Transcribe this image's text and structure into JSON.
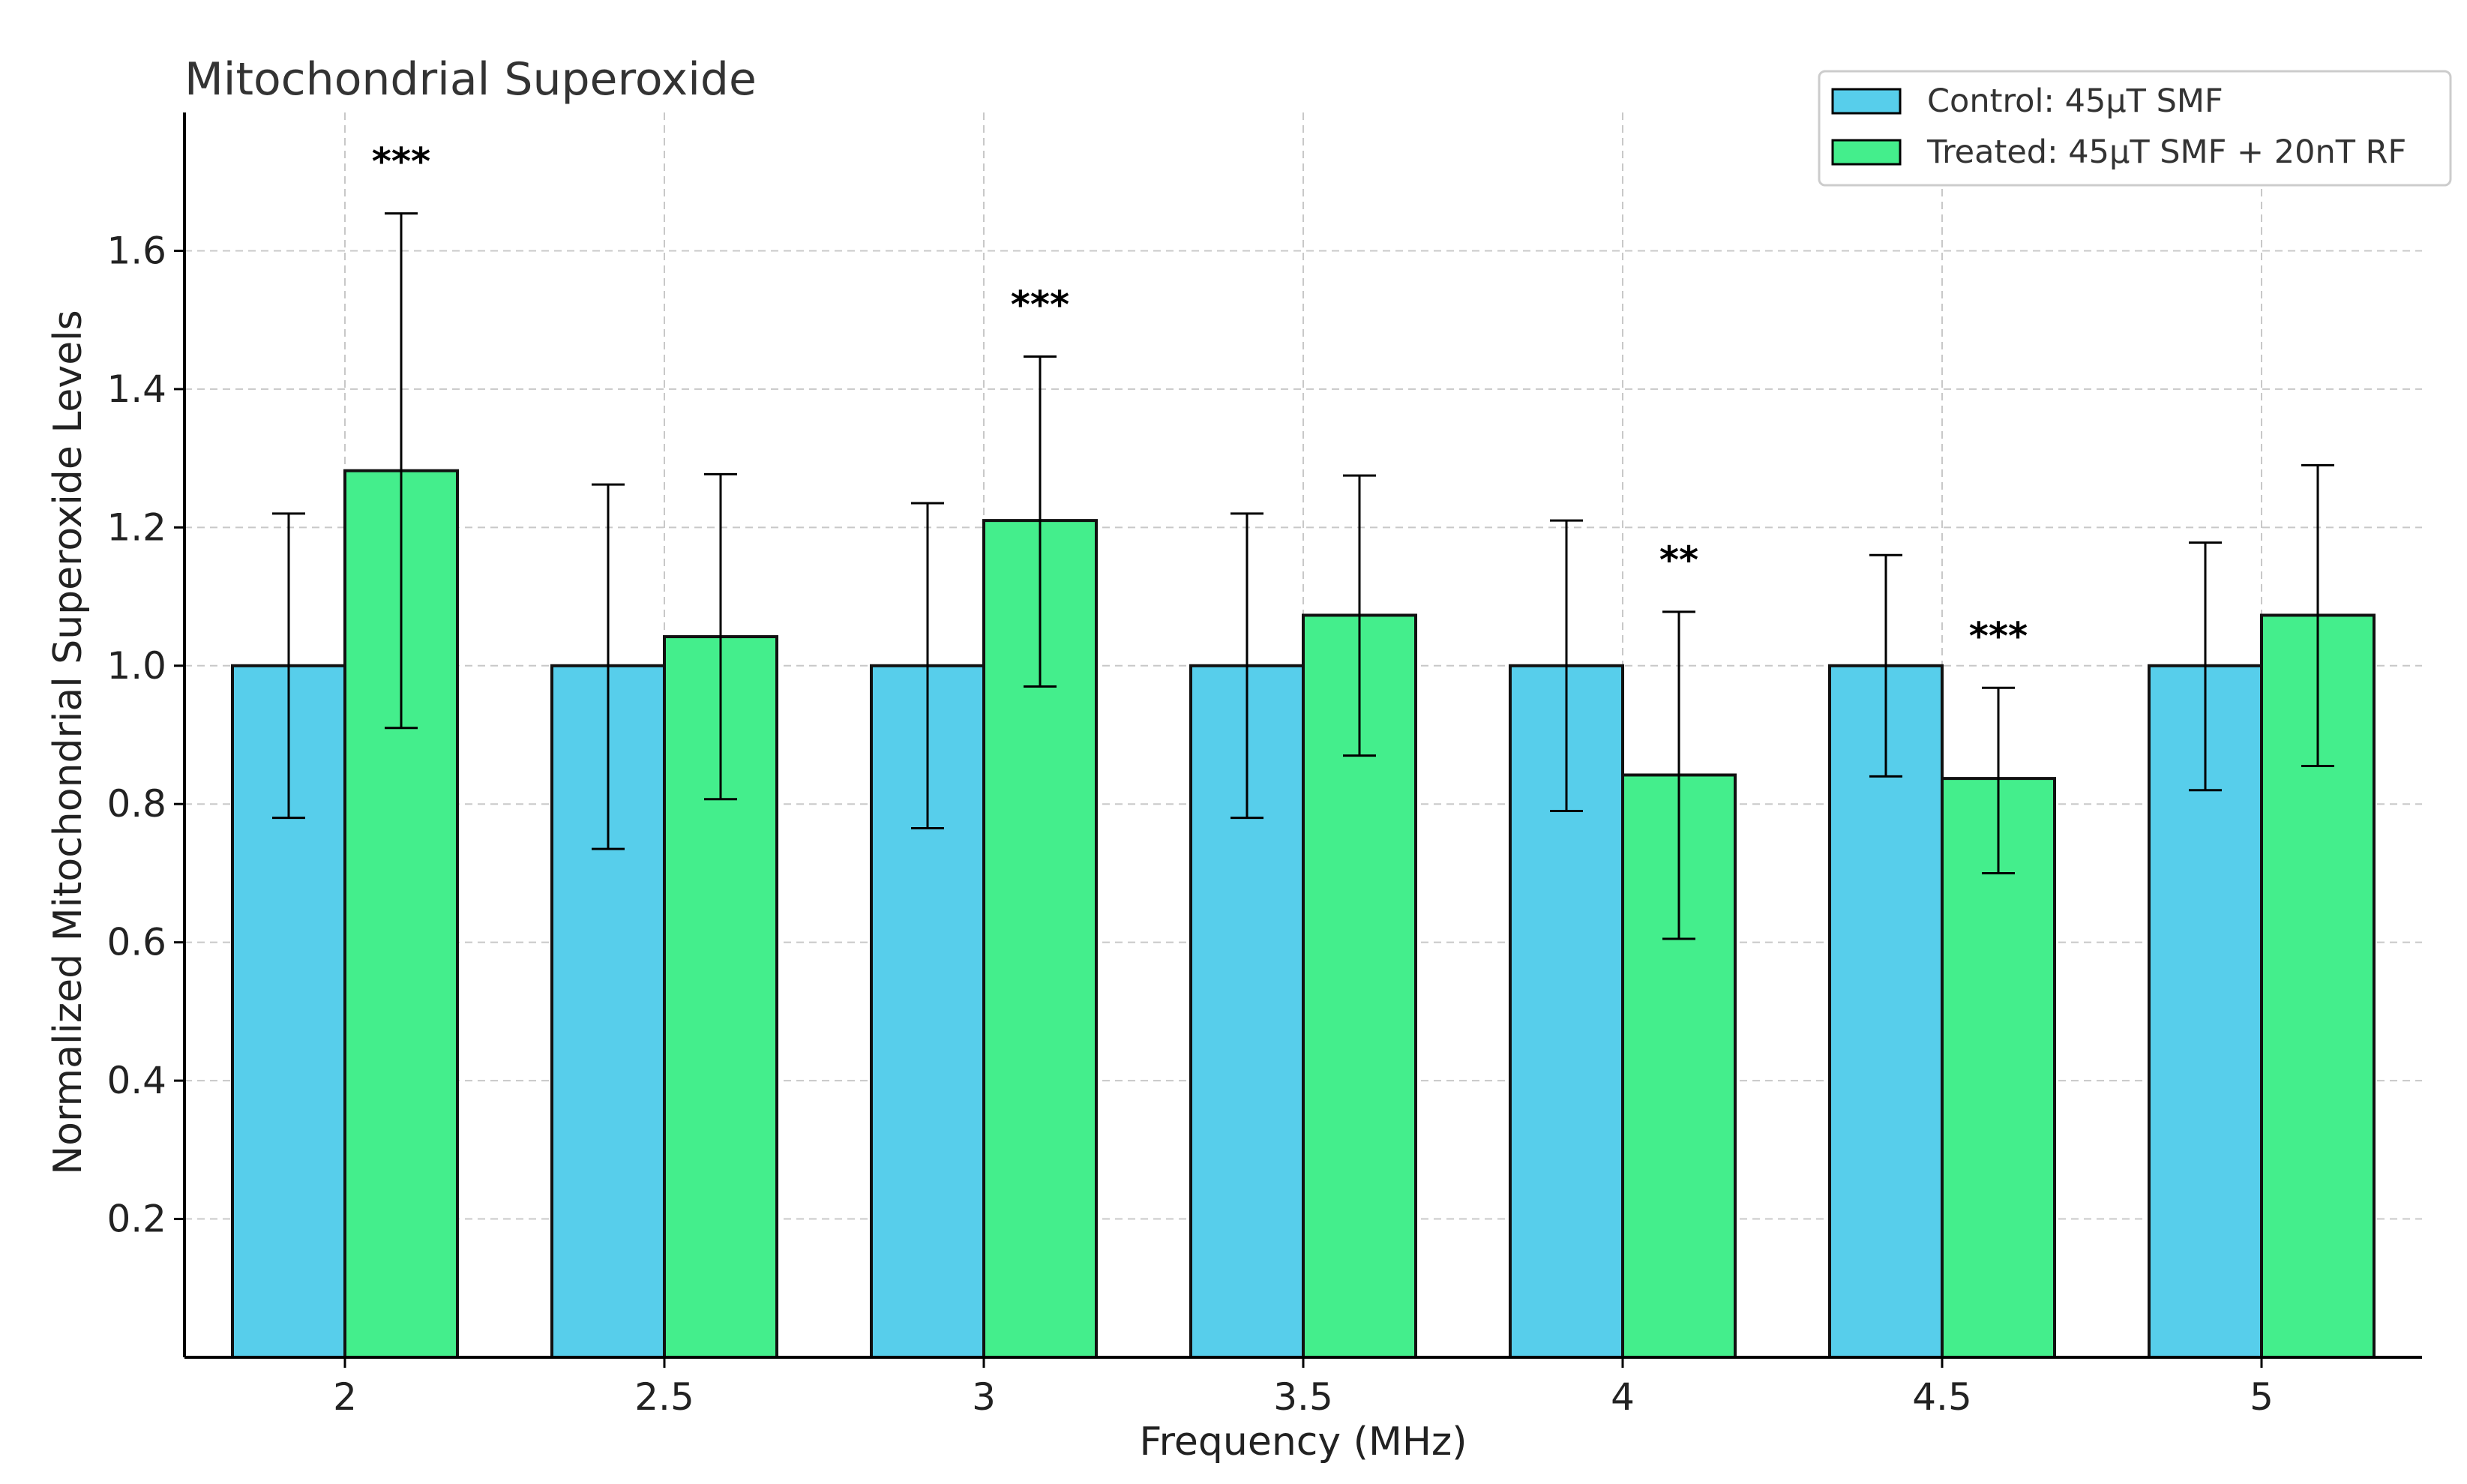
{
  "chart_data": {
    "type": "bar",
    "title": "Mitochondrial Superoxide",
    "xlabel": "Frequency (MHz)",
    "ylabel": "Normalized Mitochondrial Superoxide Levels",
    "categories": [
      "2",
      "2.5",
      "3",
      "3.5",
      "4",
      "4.5",
      "5"
    ],
    "series": [
      {
        "name": "Control: 45µT SMF",
        "color": "#57CEEB",
        "values": [
          1.0,
          1.0,
          1.0,
          1.0,
          1.0,
          1.0,
          1.0
        ],
        "error_low": [
          0.78,
          0.735,
          0.765,
          0.78,
          0.79,
          0.84,
          0.82
        ],
        "error_high": [
          1.22,
          1.262,
          1.235,
          1.22,
          1.21,
          1.16,
          1.178
        ]
      },
      {
        "name": "Treated: 45µT SMF + 20nT RF",
        "color": "#44EE8C",
        "values": [
          1.282,
          1.042,
          1.21,
          1.073,
          0.842,
          0.837,
          1.073
        ],
        "error_low": [
          0.91,
          0.807,
          0.97,
          0.87,
          0.605,
          0.7,
          0.855
        ],
        "error_high": [
          1.654,
          1.277,
          1.447,
          1.275,
          1.078,
          0.968,
          1.29
        ]
      }
    ],
    "significance": [
      "***",
      "",
      "***",
      "",
      "**",
      "***",
      ""
    ],
    "yticks": [
      "0.2",
      "0.4",
      "0.6",
      "0.8",
      "1.0",
      "1.2",
      "1.4",
      "1.6"
    ],
    "ylim": [
      0,
      1.8
    ],
    "grid": true,
    "legend_position": "top-right"
  }
}
